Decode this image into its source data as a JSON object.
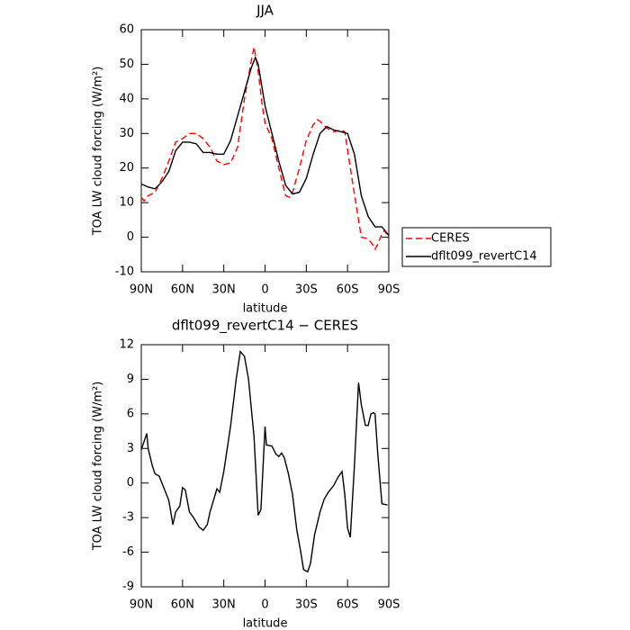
{
  "chart_data": [
    {
      "type": "line",
      "title": "JJA",
      "x_label": "latitude",
      "y_label": "TOA LW cloud forcing (W/m²)",
      "xlim": [
        90,
        -90
      ],
      "xticks": [
        {
          "value": 90,
          "label": "90N"
        },
        {
          "value": 60,
          "label": "60N"
        },
        {
          "value": 30,
          "label": "30N"
        },
        0,
        {
          "value": -30,
          "label": "30S"
        },
        {
          "value": -60,
          "label": "60S"
        },
        {
          "value": -90,
          "label": "90S"
        }
      ],
      "ylim": [
        -10,
        60
      ],
      "yticks": [
        -10,
        0,
        10,
        20,
        30,
        40,
        50,
        60
      ],
      "legend": "right",
      "series": [
        {
          "name": "CERES",
          "color": "#ff0000",
          "style": "dashed",
          "x": [
            90,
            88,
            85,
            80,
            75,
            70,
            65,
            60,
            55,
            50,
            45,
            40,
            35,
            30,
            25,
            20,
            15,
            10,
            8,
            5,
            2,
            0,
            -5,
            -10,
            -15,
            -18,
            -20,
            -25,
            -30,
            -35,
            -38,
            -40,
            -45,
            -50,
            -55,
            -58,
            -62,
            -66,
            -70,
            -75,
            -78,
            -80,
            -82,
            -85,
            -87,
            -90
          ],
          "values": [
            11.5,
            10.5,
            12,
            13,
            17,
            22,
            27.5,
            28.5,
            30,
            30,
            28.5,
            26,
            22,
            21,
            21.5,
            26,
            40,
            51,
            55,
            48,
            38,
            33,
            28.5,
            20,
            12,
            11.5,
            13,
            20,
            28,
            32.5,
            34,
            33.5,
            31.5,
            30.5,
            31,
            30.5,
            20,
            10,
            0,
            -0.5,
            -2,
            -3.5,
            -2,
            1,
            2,
            -0.5
          ]
        },
        {
          "name": "dflt099_revertC14",
          "color": "#000000",
          "style": "solid",
          "x": [
            90,
            85,
            80,
            75,
            70,
            65,
            60,
            55,
            50,
            45,
            40,
            35,
            30,
            25,
            20,
            15,
            10,
            7,
            5,
            0,
            -5,
            -10,
            -15,
            -20,
            -25,
            -30,
            -35,
            -40,
            -45,
            -50,
            -55,
            -60,
            -65,
            -70,
            -75,
            -80,
            -85,
            -90
          ],
          "values": [
            15.4,
            14.5,
            14,
            16,
            19,
            25,
            27.5,
            27.5,
            27,
            24.5,
            24.5,
            24,
            24,
            28,
            35,
            42,
            49,
            52,
            50,
            38,
            30,
            22,
            15,
            12.5,
            13,
            17,
            24,
            30,
            32,
            31,
            30.5,
            30,
            24,
            12,
            6,
            3,
            3,
            0.5
          ]
        }
      ]
    },
    {
      "type": "line",
      "title": "dflt099_revertC14 − CERES",
      "x_label": "latitude",
      "y_label": "TOA LW cloud forcing (W/m²)",
      "xlim": [
        90,
        -90
      ],
      "xticks": [
        {
          "value": 90,
          "label": "90N"
        },
        {
          "value": 60,
          "label": "60N"
        },
        {
          "value": 30,
          "label": "30N"
        },
        0,
        {
          "value": -30,
          "label": "30S"
        },
        {
          "value": -60,
          "label": "60S"
        },
        {
          "value": -90,
          "label": "90S"
        }
      ],
      "ylim": [
        -9,
        12
      ],
      "yticks": [
        -9,
        -6,
        -3,
        0,
        3,
        6,
        9,
        12
      ],
      "series": [
        {
          "color": "#000000",
          "style": "solid",
          "x": [
            90,
            86,
            85,
            82,
            80,
            77,
            75,
            70,
            67,
            65,
            62,
            60,
            58,
            55,
            52,
            48,
            45,
            42,
            40,
            35,
            33,
            30,
            25,
            21,
            18,
            15,
            12,
            8,
            5,
            3,
            0,
            -1,
            -5,
            -8,
            -10,
            -12,
            -14,
            -17,
            -20,
            -23,
            -26,
            -28,
            -31,
            -33,
            -36,
            -40,
            -43,
            -46,
            -50,
            -53,
            -56,
            -58,
            -60,
            -62,
            -65,
            -68,
            -70,
            -73,
            -75,
            -77,
            -79,
            -80,
            -82,
            -85,
            -89
          ],
          "values": [
            2.9,
            4.3,
            3,
            1.5,
            0.8,
            0.6,
            0,
            -1.5,
            -3.6,
            -2.5,
            -2,
            -0.4,
            -0.6,
            -2.5,
            -3,
            -3.8,
            -4.1,
            -3.6,
            -2.5,
            -0.5,
            -0.8,
            1,
            5,
            9,
            11.4,
            11,
            9,
            4,
            -2.8,
            -2.3,
            4.9,
            3.3,
            3.2,
            2.5,
            2.3,
            2.6,
            2.2,
            0.8,
            -1,
            -4,
            -6,
            -7.5,
            -7.7,
            -7,
            -4.5,
            -2.5,
            -1.4,
            -0.8,
            -0.2,
            0.5,
            1,
            -1,
            -3.9,
            -4.7,
            1.5,
            8.7,
            6.8,
            5,
            5,
            6,
            6.1,
            6,
            2.5,
            -1.8,
            -1.9
          ]
        }
      ]
    }
  ]
}
